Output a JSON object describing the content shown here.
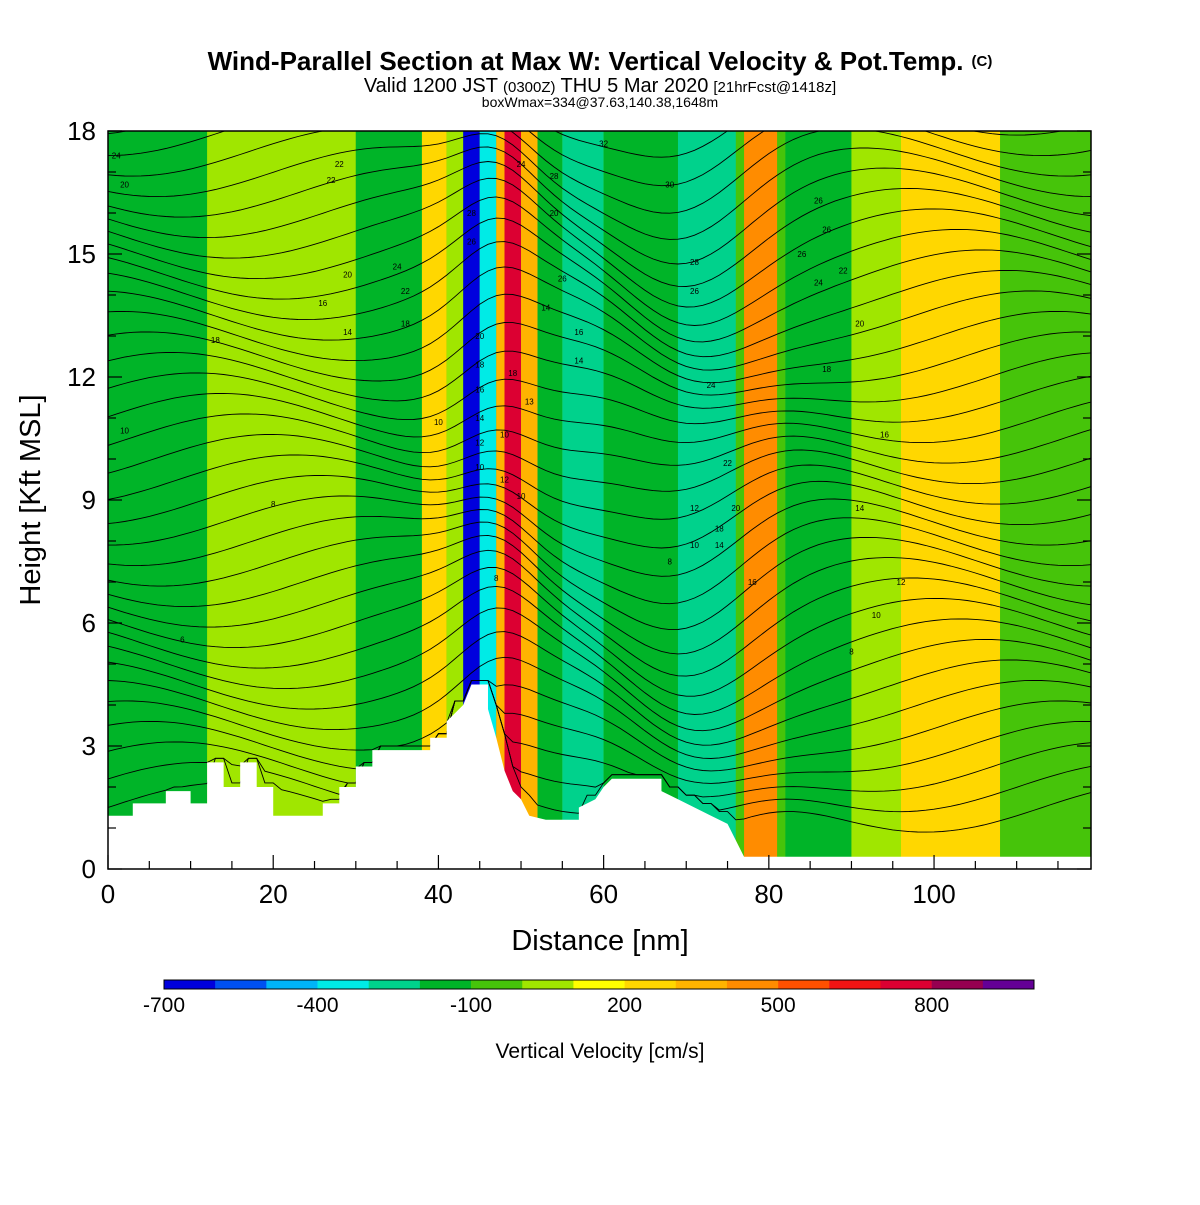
{
  "header": {
    "title": "Wind-Parallel Section at Max W: Vertical Velocity & Pot.Temp.",
    "title_mark": "(C)",
    "valid_prefix": "Valid 1200 JST",
    "valid_utc": "(0300Z)",
    "valid_date": "THU 5 Mar 2020",
    "valid_fcst": "[21hrFcst@1418z]",
    "boxline": "boxWmax=334@37.63,140.38,1648m"
  },
  "chart_data": {
    "type": "heatmap",
    "xlabel": "Distance [nm]",
    "ylabel": "Height [Kft MSL]",
    "xlim": [
      0,
      119
    ],
    "ylim": [
      0,
      18
    ],
    "x_ticks": [
      0,
      20,
      40,
      60,
      80,
      100
    ],
    "y_ticks": [
      0,
      3,
      6,
      9,
      12,
      15,
      18
    ],
    "colorbar": {
      "label": "Vertical Velocity [cm/s]",
      "min": -700,
      "max": 1000,
      "step": 100,
      "tick_values": [
        -700,
        -400,
        -100,
        200,
        500,
        800
      ],
      "colors": [
        "#0000dd",
        "#0050f0",
        "#00b4f8",
        "#00ebe6",
        "#00d28c",
        "#00b428",
        "#46c40a",
        "#a0e600",
        "#ffff00",
        "#ffd700",
        "#ffb400",
        "#ff8c00",
        "#ff5000",
        "#f01414",
        "#dc0032",
        "#960050",
        "#640096"
      ]
    },
    "velocity_columns": [
      {
        "x": [
          0,
          12
        ],
        "w": -150
      },
      {
        "x": [
          12,
          30
        ],
        "w": 0
      },
      {
        "x": [
          30,
          39
        ],
        "w": -150
      },
      {
        "x": [
          38,
          41
        ],
        "w": 250
      },
      {
        "x": [
          41,
          43
        ],
        "w": 0
      },
      {
        "x": [
          43,
          45
        ],
        "w": -700
      },
      {
        "x": [
          45,
          47
        ],
        "w": -400
      },
      {
        "x": [
          47,
          48
        ],
        "w": 300
      },
      {
        "x": [
          48,
          50
        ],
        "w": 750
      },
      {
        "x": [
          50,
          52
        ],
        "w": 300
      },
      {
        "x": [
          52,
          55
        ],
        "w": -150
      },
      {
        "x": [
          55,
          60
        ],
        "w": -300
      },
      {
        "x": [
          60,
          69
        ],
        "w": -150
      },
      {
        "x": [
          69,
          76
        ],
        "w": -300
      },
      {
        "x": [
          77,
          81
        ],
        "w": 400
      },
      {
        "x": [
          82,
          90
        ],
        "w": -150
      },
      {
        "x": [
          90,
          96
        ],
        "w": 0
      },
      {
        "x": [
          96,
          108
        ],
        "w": 200
      },
      {
        "x": [
          108,
          119
        ],
        "w": -100
      }
    ],
    "terrain": [
      [
        0,
        1.3
      ],
      [
        3,
        1.3
      ],
      [
        3,
        1.6
      ],
      [
        7,
        1.6
      ],
      [
        7,
        1.9
      ],
      [
        10,
        1.9
      ],
      [
        10,
        1.6
      ],
      [
        12,
        1.6
      ],
      [
        12,
        2.6
      ],
      [
        14,
        2.6
      ],
      [
        14,
        2.0
      ],
      [
        16,
        2.0
      ],
      [
        16,
        2.6
      ],
      [
        18,
        2.6
      ],
      [
        18,
        2.0
      ],
      [
        20,
        2.0
      ],
      [
        20,
        1.3
      ],
      [
        26,
        1.3
      ],
      [
        26,
        1.6
      ],
      [
        28,
        1.6
      ],
      [
        28,
        2.0
      ],
      [
        30,
        2.0
      ],
      [
        30,
        2.5
      ],
      [
        32,
        2.5
      ],
      [
        32,
        2.9
      ],
      [
        39,
        2.9
      ],
      [
        39,
        3.2
      ],
      [
        41,
        3.2
      ],
      [
        41,
        3.6
      ],
      [
        43,
        4.0
      ],
      [
        44,
        4.5
      ],
      [
        46,
        4.5
      ],
      [
        46,
        3.9
      ],
      [
        47,
        3.2
      ],
      [
        48,
        2.4
      ],
      [
        49,
        1.9
      ],
      [
        50,
        1.7
      ],
      [
        51,
        1.3
      ],
      [
        53,
        1.2
      ],
      [
        57,
        1.2
      ],
      [
        57,
        1.5
      ],
      [
        59,
        1.7
      ],
      [
        60,
        2.0
      ],
      [
        61,
        2.2
      ],
      [
        67,
        2.2
      ],
      [
        67,
        1.9
      ],
      [
        69,
        1.7
      ],
      [
        71,
        1.5
      ],
      [
        73,
        1.3
      ],
      [
        75,
        1.1
      ],
      [
        77,
        0.3
      ],
      [
        119,
        0.3
      ]
    ],
    "theta_contour_labels": [
      {
        "x": 1,
        "y": 17.4,
        "text": "24"
      },
      {
        "x": 2,
        "y": 16.7,
        "text": "20"
      },
      {
        "x": 28,
        "y": 17.2,
        "text": "22"
      },
      {
        "x": 27,
        "y": 16.8,
        "text": "22"
      },
      {
        "x": 29,
        "y": 14.5,
        "text": "20"
      },
      {
        "x": 35,
        "y": 14.7,
        "text": "24"
      },
      {
        "x": 36,
        "y": 14.1,
        "text": "22"
      },
      {
        "x": 26,
        "y": 13.8,
        "text": "16"
      },
      {
        "x": 13,
        "y": 12.9,
        "text": "18"
      },
      {
        "x": 29,
        "y": 13.1,
        "text": "14"
      },
      {
        "x": 36,
        "y": 13.3,
        "text": "18"
      },
      {
        "x": 2,
        "y": 10.7,
        "text": "10"
      },
      {
        "x": 40,
        "y": 10.9,
        "text": "10"
      },
      {
        "x": 20,
        "y": 8.9,
        "text": "8"
      },
      {
        "x": 9,
        "y": 5.6,
        "text": "6"
      },
      {
        "x": 47,
        "y": 7.1,
        "text": "8"
      },
      {
        "x": 44,
        "y": 16.0,
        "text": "28"
      },
      {
        "x": 44,
        "y": 15.3,
        "text": "26"
      },
      {
        "x": 45,
        "y": 13.0,
        "text": "20"
      },
      {
        "x": 45,
        "y": 12.3,
        "text": "18"
      },
      {
        "x": 45,
        "y": 11.7,
        "text": "16"
      },
      {
        "x": 45,
        "y": 11.0,
        "text": "14"
      },
      {
        "x": 45,
        "y": 10.4,
        "text": "12"
      },
      {
        "x": 45,
        "y": 9.8,
        "text": "10"
      },
      {
        "x": 48,
        "y": 10.6,
        "text": "10"
      },
      {
        "x": 48,
        "y": 9.5,
        "text": "12"
      },
      {
        "x": 49,
        "y": 12.1,
        "text": "18"
      },
      {
        "x": 50,
        "y": 17.2,
        "text": "24"
      },
      {
        "x": 50,
        "y": 9.1,
        "text": "10"
      },
      {
        "x": 51,
        "y": 11.4,
        "text": "13"
      },
      {
        "x": 54,
        "y": 16.9,
        "text": "28"
      },
      {
        "x": 54,
        "y": 16.0,
        "text": "20"
      },
      {
        "x": 55,
        "y": 14.4,
        "text": "26"
      },
      {
        "x": 53,
        "y": 13.7,
        "text": "14"
      },
      {
        "x": 57,
        "y": 13.1,
        "text": "16"
      },
      {
        "x": 57,
        "y": 12.4,
        "text": "14"
      },
      {
        "x": 60,
        "y": 17.7,
        "text": "32"
      },
      {
        "x": 68,
        "y": 16.7,
        "text": "30"
      },
      {
        "x": 71,
        "y": 14.8,
        "text": "28"
      },
      {
        "x": 71,
        "y": 14.1,
        "text": "26"
      },
      {
        "x": 73,
        "y": 11.8,
        "text": "24"
      },
      {
        "x": 75,
        "y": 9.9,
        "text": "22"
      },
      {
        "x": 71,
        "y": 8.8,
        "text": "12"
      },
      {
        "x": 71,
        "y": 7.9,
        "text": "10"
      },
      {
        "x": 74,
        "y": 7.9,
        "text": "14"
      },
      {
        "x": 76,
        "y": 8.8,
        "text": "20"
      },
      {
        "x": 74,
        "y": 8.3,
        "text": "18"
      },
      {
        "x": 78,
        "y": 7.0,
        "text": "16"
      },
      {
        "x": 68,
        "y": 7.5,
        "text": "8"
      },
      {
        "x": 86,
        "y": 16.3,
        "text": "26"
      },
      {
        "x": 87,
        "y": 15.6,
        "text": "26"
      },
      {
        "x": 84,
        "y": 15.0,
        "text": "26"
      },
      {
        "x": 86,
        "y": 14.3,
        "text": "24"
      },
      {
        "x": 89,
        "y": 14.6,
        "text": "22"
      },
      {
        "x": 91,
        "y": 13.3,
        "text": "20"
      },
      {
        "x": 87,
        "y": 12.2,
        "text": "18"
      },
      {
        "x": 94,
        "y": 10.6,
        "text": "16"
      },
      {
        "x": 91,
        "y": 8.8,
        "text": "14"
      },
      {
        "x": 96,
        "y": 7.0,
        "text": "12"
      },
      {
        "x": 93,
        "y": 6.2,
        "text": "10"
      },
      {
        "x": 90,
        "y": 5.3,
        "text": "8"
      }
    ]
  }
}
